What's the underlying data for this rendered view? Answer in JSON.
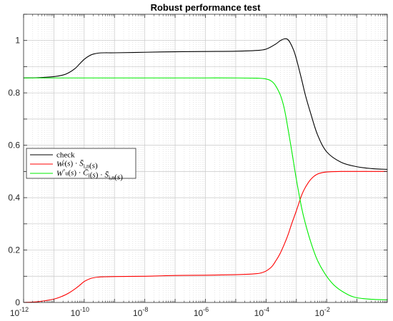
{
  "chart_data": {
    "type": "line",
    "title": "Robust performance test",
    "xlabel": "",
    "ylabel": "",
    "x_scale": "log",
    "xlim": [
      1e-12,
      1
    ],
    "ylim": [
      0,
      1.1
    ],
    "grid": true,
    "legend_position": "middle-left",
    "x_tick_labels": [
      {
        "base": "10",
        "exp": "-12",
        "value": 1e-12
      },
      {
        "base": "10",
        "exp": "-10",
        "value": 1e-10
      },
      {
        "base": "10",
        "exp": "-8",
        "value": 1e-08
      },
      {
        "base": "10",
        "exp": "-6",
        "value": 1e-06
      },
      {
        "base": "10",
        "exp": "-4",
        "value": 0.0001
      },
      {
        "base": "10",
        "exp": "-2",
        "value": 0.01
      }
    ],
    "y_tick_labels": [
      {
        "label": "0",
        "value": 0
      },
      {
        "label": "0.2",
        "value": 0.2
      },
      {
        "label": "0.4",
        "value": 0.4
      },
      {
        "label": "0.6",
        "value": 0.6
      },
      {
        "label": "0.8",
        "value": 0.8
      },
      {
        "label": "1",
        "value": 1
      }
    ],
    "series": [
      {
        "name": "check",
        "color": "#000000",
        "x": [
          1e-12,
          3e-12,
          1e-11,
          2e-11,
          3e-11,
          5e-11,
          7e-11,
          1e-10,
          1.5e-10,
          2e-10,
          3e-10,
          5e-10,
          1e-09,
          1e-08,
          1e-07,
          1e-06,
          1e-05,
          5e-05,
          0.0001,
          0.0002,
          0.0003,
          0.0004,
          0.0005,
          0.0006,
          0.0008,
          0.001,
          0.0015,
          0.002,
          0.003,
          0.005,
          0.01,
          0.03,
          0.1,
          0.3,
          1
        ],
        "y": [
          0.857,
          0.858,
          0.862,
          0.868,
          0.876,
          0.893,
          0.91,
          0.928,
          0.942,
          0.948,
          0.952,
          0.953,
          0.953,
          0.955,
          0.957,
          0.958,
          0.959,
          0.962,
          0.967,
          0.985,
          1.0,
          1.006,
          1.005,
          0.995,
          0.965,
          0.93,
          0.85,
          0.79,
          0.72,
          0.64,
          0.575,
          0.535,
          0.518,
          0.511,
          0.508
        ]
      },
      {
        "name": "W'_e(s) · S̄_{i,n}(s)",
        "color": "#ff0000",
        "x": [
          1e-12,
          3e-12,
          1e-11,
          2e-11,
          3e-11,
          5e-11,
          7e-11,
          1e-10,
          1.5e-10,
          2e-10,
          3e-10,
          5e-10,
          1e-09,
          1e-08,
          1e-07,
          1e-06,
          1e-05,
          3e-05,
          5e-05,
          7e-05,
          0.0001,
          0.00015,
          0.0002,
          0.0003,
          0.0005,
          0.0007,
          0.001,
          0.0015,
          0.002,
          0.003,
          0.005,
          0.01,
          0.03,
          0.1,
          1
        ],
        "y": [
          0.0,
          0.003,
          0.013,
          0.025,
          0.035,
          0.052,
          0.065,
          0.08,
          0.09,
          0.094,
          0.097,
          0.098,
          0.099,
          0.1,
          0.103,
          0.104,
          0.106,
          0.108,
          0.11,
          0.113,
          0.12,
          0.135,
          0.155,
          0.19,
          0.25,
          0.3,
          0.35,
          0.41,
          0.44,
          0.47,
          0.49,
          0.498,
          0.5,
          0.5,
          0.5
        ]
      },
      {
        "name": "W°_u(s) · C̄_i(s) · S̄_{i,n}(s)",
        "color": "#00ee00",
        "x": [
          1e-12,
          1e-11,
          1e-10,
          1e-09,
          1e-08,
          1e-07,
          1e-06,
          1e-05,
          5e-05,
          0.0001,
          0.00015,
          0.0002,
          0.0003,
          0.0004,
          0.0005,
          0.0007,
          0.001,
          0.0015,
          0.002,
          0.003,
          0.005,
          0.01,
          0.02,
          0.05,
          0.1,
          0.3,
          1
        ],
        "y": [
          0.857,
          0.857,
          0.857,
          0.857,
          0.857,
          0.857,
          0.857,
          0.857,
          0.856,
          0.853,
          0.845,
          0.83,
          0.79,
          0.74,
          0.68,
          0.58,
          0.47,
          0.36,
          0.3,
          0.23,
          0.16,
          0.1,
          0.06,
          0.03,
          0.018,
          0.012,
          0.01
        ]
      }
    ]
  }
}
